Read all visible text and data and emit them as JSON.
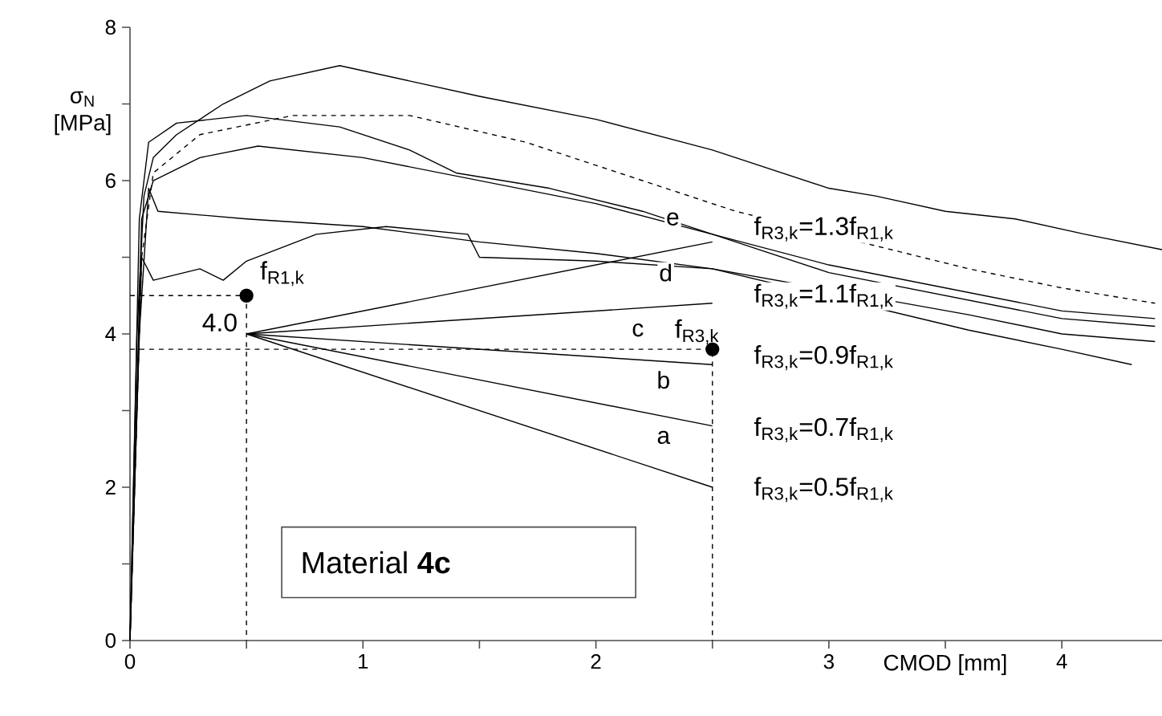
{
  "chart_data": {
    "type": "line",
    "xlabel": "CMOD [mm]",
    "ylabel": "σ$_{N}$ [MPa]",
    "xlim": [
      0,
      4.43
    ],
    "ylim": [
      0,
      8
    ],
    "xticks": [
      0,
      {
        "value": 0.5,
        "label": null
      },
      1,
      {
        "value": 1.5,
        "label": null
      },
      2,
      {
        "value": 2.5,
        "label": null
      },
      3,
      {
        "value": 3.5,
        "label": null
      },
      4
    ],
    "yticks": [
      0,
      {
        "value": 1,
        "label": null
      },
      2,
      {
        "value": 3,
        "label": null
      },
      4,
      {
        "value": 5,
        "label": null
      },
      6,
      {
        "value": 7,
        "label": null
      },
      8
    ],
    "series": [
      {
        "color": "#000000",
        "x": [
          0,
          0.03,
          0.06,
          0.1,
          0.2,
          0.4,
          0.6,
          0.9,
          1.2,
          1.5,
          2.0,
          2.5,
          3.0,
          3.2,
          3.5,
          3.8,
          4.1,
          4.43
        ],
        "values": [
          0,
          4,
          5.8,
          6.3,
          6.6,
          7.0,
          7.3,
          7.5,
          7.3,
          7.1,
          6.8,
          6.4,
          5.9,
          5.8,
          5.6,
          5.5,
          5.3,
          5.1
        ]
      },
      {
        "color": "#000000",
        "line_style": "dashed",
        "x": [
          0,
          0.05,
          0.1,
          0.3,
          0.7,
          1.2,
          1.7,
          2.2,
          2.6,
          3.6,
          4.0,
          4.4
        ],
        "values": [
          0,
          5,
          6.1,
          6.6,
          6.85,
          6.85,
          6.5,
          6.0,
          5.6,
          4.85,
          4.6,
          4.4
        ]
      },
      {
        "color": "#000000",
        "x": [
          0,
          0.04,
          0.08,
          0.2,
          0.5,
          0.9,
          1.2,
          1.4,
          1.8,
          2.2,
          2.6,
          3.0,
          3.5,
          4.0,
          4.4
        ],
        "values": [
          0,
          5.5,
          6.5,
          6.75,
          6.85,
          6.7,
          6.4,
          6.1,
          5.9,
          5.6,
          5.2,
          4.8,
          4.5,
          4.2,
          4.1
        ]
      },
      {
        "color": "#000000",
        "x": [
          0,
          0.05,
          0.1,
          0.3,
          0.55,
          1.0,
          1.5,
          2.0,
          2.5,
          3.0,
          3.5,
          4.0,
          4.4
        ],
        "values": [
          0,
          5.5,
          6.0,
          6.3,
          6.45,
          6.3,
          6.0,
          5.7,
          5.3,
          4.9,
          4.6,
          4.3,
          4.2
        ]
      },
      {
        "color": "#000000",
        "x": [
          0,
          0.04,
          0.08,
          0.12,
          0.5,
          1.0,
          1.5,
          2.0,
          2.5,
          3.6,
          4.0,
          4.3
        ],
        "values": [
          0,
          4,
          5.9,
          5.6,
          5.5,
          5.4,
          5.2,
          5.05,
          4.85,
          4.05,
          3.8,
          3.6
        ]
      },
      {
        "color": "#000000",
        "x": [
          0,
          0.05,
          0.1,
          0.3,
          0.4,
          0.5,
          0.8,
          1.1,
          1.45,
          1.5,
          2.0,
          2.5,
          3.6,
          4.0,
          4.4
        ],
        "values": [
          0,
          5.0,
          4.7,
          4.85,
          4.7,
          4.95,
          5.3,
          5.4,
          5.3,
          5.0,
          4.95,
          4.85,
          4.25,
          4.0,
          3.9
        ]
      },
      {
        "color": "#000000",
        "x": [
          0.5,
          2.5
        ],
        "values": [
          4.0,
          2.0
        ]
      },
      {
        "color": "#000000",
        "x": [
          0.5,
          2.5
        ],
        "values": [
          4.0,
          2.8
        ]
      },
      {
        "color": "#000000",
        "x": [
          0.5,
          2.5
        ],
        "values": [
          4.0,
          3.6
        ]
      },
      {
        "color": "#000000",
        "x": [
          0.5,
          2.5
        ],
        "values": [
          4.0,
          4.4
        ]
      },
      {
        "color": "#000000",
        "x": [
          0.5,
          2.5
        ],
        "values": [
          4.0,
          5.2
        ]
      },
      {
        "color": "#000000",
        "line_style": "dashed",
        "x": [
          0,
          0.5,
          0.5
        ],
        "values": [
          4.5,
          4.5,
          0
        ]
      },
      {
        "color": "#000000",
        "line_style": "dashed",
        "x": [
          0,
          2.5,
          2.5
        ],
        "values": [
          3.8,
          3.8,
          0
        ]
      },
      {
        "type": "scatter",
        "marker": "circle",
        "color": "#000000",
        "x": [
          0.5,
          2.5
        ],
        "values": [
          4.5,
          3.8
        ]
      }
    ],
    "annotations": [
      "f$_{R1,k}$",
      "4.0",
      "f$_{R3,k}$",
      "a",
      "b",
      "c",
      "d",
      "e",
      "f$_{R3,k}$=1.3f$_{R1,k}$",
      "f$_{R3,k}$=1.1f$_{R1,k}$",
      "f$_{R3,k}$=0.9f$_{R1,k}$",
      "f$_{R3,k}$=0.7f$_{R1,k}$",
      "f$_{R3,k}$=0.5f$_{R1,k}$",
      "Material **4c**"
    ]
  }
}
